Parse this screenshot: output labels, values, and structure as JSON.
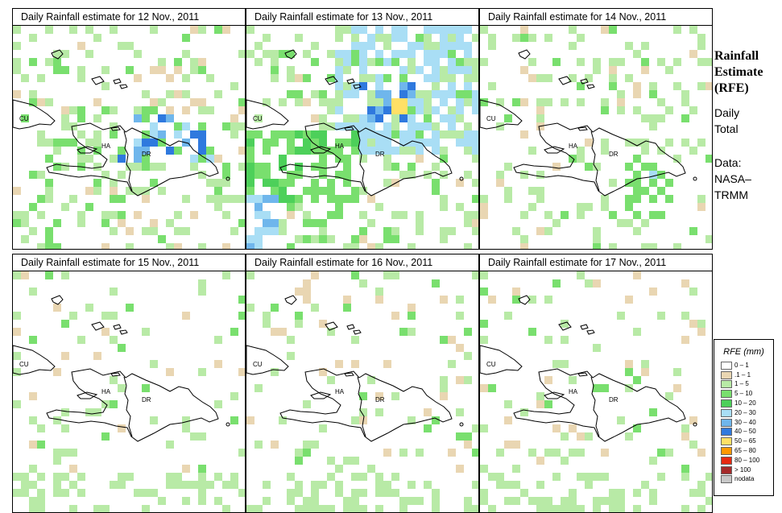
{
  "panels": [
    {
      "title": "Daily Rainfall estimate for  12 Nov., 2011",
      "day": "12"
    },
    {
      "title": "Daily Rainfall estimate for  13 Nov., 2011",
      "day": "13"
    },
    {
      "title": "Daily Rainfall estimate for  14 Nov., 2011",
      "day": "14"
    },
    {
      "title": "Daily Rainfall estimate for  15 Nov., 2011",
      "day": "15"
    },
    {
      "title": "Daily Rainfall estimate for  16 Nov., 2011",
      "day": "16"
    },
    {
      "title": "Daily Rainfall estimate for  17 Nov., 2011",
      "day": "17"
    }
  ],
  "country_labels": {
    "cuba": "CU",
    "haiti": "HA",
    "dominican_republic": "DR"
  },
  "side_panel": {
    "title_line1": "Rainfall",
    "title_line2": "Estimate",
    "title_line3": "(RFE)",
    "desc_line1": "Daily",
    "desc_line2": "Total",
    "data_line1": "Data:",
    "data_line2": "NASA–",
    "data_line3": "TRMM"
  },
  "legend": {
    "title": "RFE (mm)",
    "items": [
      {
        "label": "0 – 1",
        "color": "#ffffff"
      },
      {
        "label": ".1 – 1",
        "color": "#e9d6b2"
      },
      {
        "label": "1 – 5",
        "color": "#b8eaa6"
      },
      {
        "label": "5 – 10",
        "color": "#79df6e"
      },
      {
        "label": "10 – 20",
        "color": "#4dd05a"
      },
      {
        "label": "20 – 30",
        "color": "#a9def5"
      },
      {
        "label": "30 – 40",
        "color": "#6fb6ec"
      },
      {
        "label": "40 – 50",
        "color": "#2f79de"
      },
      {
        "label": "50 – 65",
        "color": "#ffe066"
      },
      {
        "label": "65 – 80",
        "color": "#ff9900"
      },
      {
        "label": "80 – 100",
        "color": "#e62a12"
      },
      {
        "label": "> 100",
        "color": "#a52a2a"
      },
      {
        "label": "nodata",
        "color": "#c8c8c8"
      }
    ]
  }
}
